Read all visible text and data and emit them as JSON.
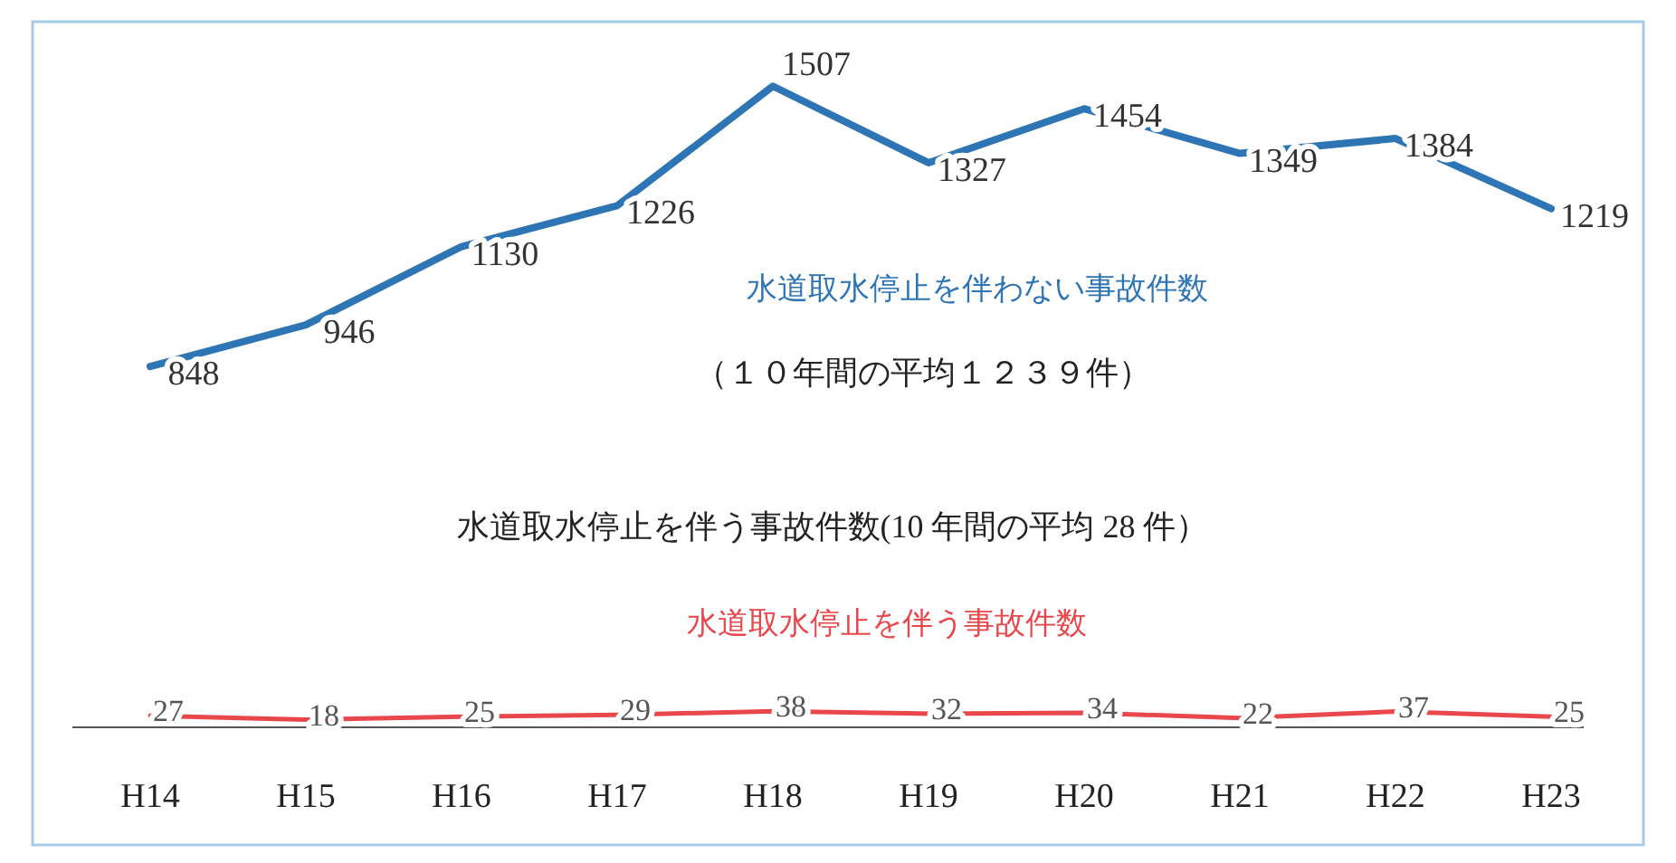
{
  "chart_data": {
    "type": "line",
    "categories": [
      "H14",
      "H15",
      "H16",
      "H17",
      "H18",
      "H19",
      "H20",
      "H21",
      "H22",
      "H23"
    ],
    "series": [
      {
        "name": "水道取水停止を伴わない事故件数",
        "color": "#2e75b6",
        "values": [
          848,
          946,
          1130,
          1226,
          1507,
          1327,
          1454,
          1349,
          1384,
          1219
        ]
      },
      {
        "name": "水道取水停止を伴う事故件数",
        "color": "#e8474c",
        "values": [
          27,
          18,
          25,
          29,
          38,
          32,
          34,
          22,
          37,
          25
        ]
      }
    ],
    "annotations": [
      "（１０年間の平均１２３９件）",
      "水道取水停止を伴う事故件数(10 年間の平均 28 件）"
    ],
    "ylim": [
      0,
      1650
    ],
    "data_labels": true,
    "marker": "none",
    "line_style": "solid"
  }
}
